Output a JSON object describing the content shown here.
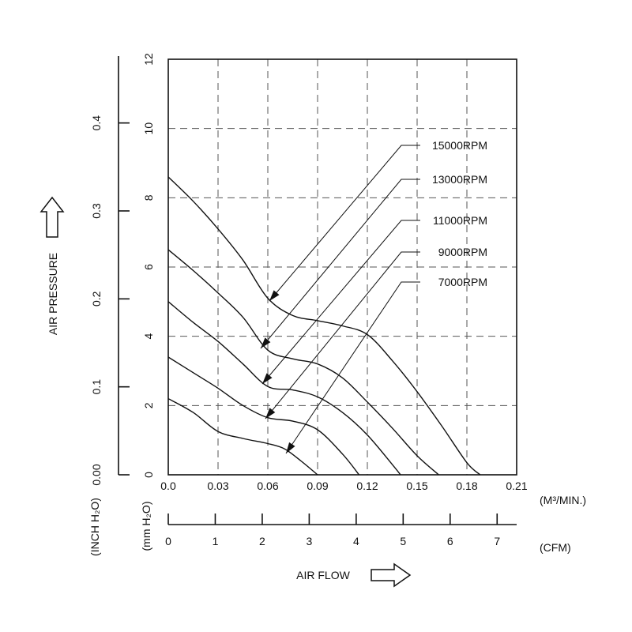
{
  "chart_data": {
    "type": "line",
    "x": {
      "unit_label": "(M³/MIN.)",
      "range": [
        0,
        0.21
      ],
      "ticks": [
        "0.0",
        "0.03",
        "0.06",
        "0.09",
        "0.12",
        "0.15",
        "0.18",
        "0.21"
      ]
    },
    "x_cfm": {
      "unit_label": "(CFM)",
      "ticks": [
        "0",
        "1",
        "2",
        "3",
        "4",
        "5",
        "6",
        "7"
      ]
    },
    "y": {
      "unit_label": "(mm H₂O)",
      "range": [
        0,
        12
      ],
      "ticks": [
        "0",
        "2",
        "4",
        "6",
        "8",
        "10",
        "12"
      ]
    },
    "y_inch": {
      "unit_label": "(INCH H₂O)",
      "ticks": [
        "0.00",
        "0.1",
        "0.2",
        "0.3",
        "0.4"
      ]
    },
    "xlabel": "AIR FLOW",
    "ylabel": "AIR PRESSURE",
    "grid": true,
    "series": [
      {
        "name": "15000RPM",
        "x": [
          0,
          0.015,
          0.03,
          0.045,
          0.06,
          0.075,
          0.09,
          0.105,
          0.12,
          0.135,
          0.15,
          0.165,
          0.18,
          0.188
        ],
        "y": [
          8.6,
          7.9,
          7.1,
          6.2,
          5.1,
          4.6,
          4.45,
          4.3,
          4.05,
          3.3,
          2.4,
          1.4,
          0.35,
          0
        ]
      },
      {
        "name": "13000RPM",
        "x": [
          0,
          0.015,
          0.03,
          0.045,
          0.06,
          0.075,
          0.09,
          0.105,
          0.12,
          0.135,
          0.15,
          0.163
        ],
        "y": [
          6.5,
          5.9,
          5.25,
          4.55,
          3.6,
          3.35,
          3.2,
          2.8,
          2.1,
          1.35,
          0.55,
          0
        ]
      },
      {
        "name": "11000RPM",
        "x": [
          0,
          0.015,
          0.03,
          0.045,
          0.06,
          0.075,
          0.09,
          0.105,
          0.12,
          0.135,
          0.14
        ],
        "y": [
          5.0,
          4.4,
          3.85,
          3.2,
          2.55,
          2.45,
          2.25,
          1.8,
          1.15,
          0.3,
          0
        ]
      },
      {
        "name": "9000RPM",
        "x": [
          0,
          0.015,
          0.03,
          0.045,
          0.06,
          0.075,
          0.09,
          0.105,
          0.115
        ],
        "y": [
          3.4,
          2.95,
          2.5,
          2.0,
          1.65,
          1.55,
          1.3,
          0.6,
          0
        ]
      },
      {
        "name": "7000RPM",
        "x": [
          0,
          0.015,
          0.03,
          0.045,
          0.06,
          0.07,
          0.08,
          0.09
        ],
        "y": [
          2.2,
          1.8,
          1.25,
          1.05,
          0.9,
          0.75,
          0.4,
          0
        ]
      }
    ]
  }
}
